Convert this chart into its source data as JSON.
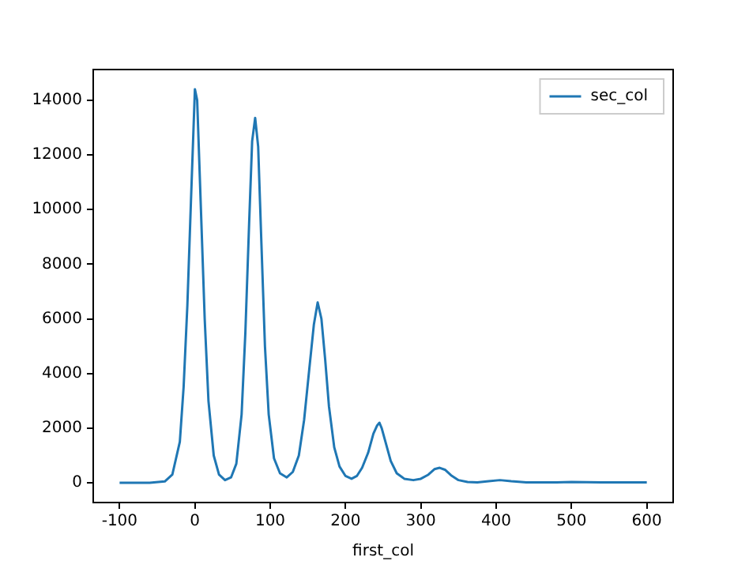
{
  "chart_data": {
    "type": "line",
    "xlabel": "first_col",
    "legend": "top right",
    "grid": false,
    "marker": "none",
    "line_style": "solid",
    "xlim": [
      -135,
      635
    ],
    "xticks": [
      -100,
      0,
      100,
      200,
      300,
      400,
      500,
      600
    ],
    "ylim": [
      -720,
      15120
    ],
    "yticks": [
      0,
      2000,
      4000,
      6000,
      8000,
      10000,
      12000,
      14000
    ],
    "series": [
      {
        "name": "sec_col",
        "color": "#1f77b4",
        "x": [
          -100,
          -60,
          -40,
          -30,
          -20,
          -15,
          -10,
          -5,
          0,
          3,
          8,
          13,
          18,
          25,
          32,
          40,
          48,
          55,
          62,
          67,
          72,
          76,
          80,
          84,
          88,
          93,
          98,
          105,
          113,
          122,
          130,
          138,
          145,
          152,
          158,
          163,
          168,
          173,
          178,
          185,
          192,
          200,
          208,
          215,
          222,
          230,
          237,
          242,
          245,
          248,
          253,
          260,
          268,
          278,
          290,
          300,
          310,
          318,
          325,
          332,
          340,
          350,
          362,
          375,
          390,
          405,
          420,
          440,
          480,
          500,
          540,
          600
        ],
        "values": [
          0,
          0,
          50,
          300,
          1500,
          3500,
          6500,
          10500,
          14400,
          14000,
          10000,
          6000,
          3000,
          1000,
          300,
          100,
          200,
          700,
          2500,
          5500,
          9500,
          12500,
          13350,
          12300,
          9000,
          5000,
          2500,
          900,
          350,
          200,
          400,
          1000,
          2300,
          4200,
          5800,
          6600,
          6000,
          4500,
          2800,
          1300,
          600,
          250,
          150,
          250,
          550,
          1100,
          1800,
          2100,
          2200,
          2000,
          1500,
          800,
          350,
          150,
          100,
          150,
          300,
          500,
          550,
          480,
          280,
          100,
          30,
          20,
          60,
          100,
          60,
          20,
          20,
          30,
          20,
          20
        ]
      }
    ]
  }
}
